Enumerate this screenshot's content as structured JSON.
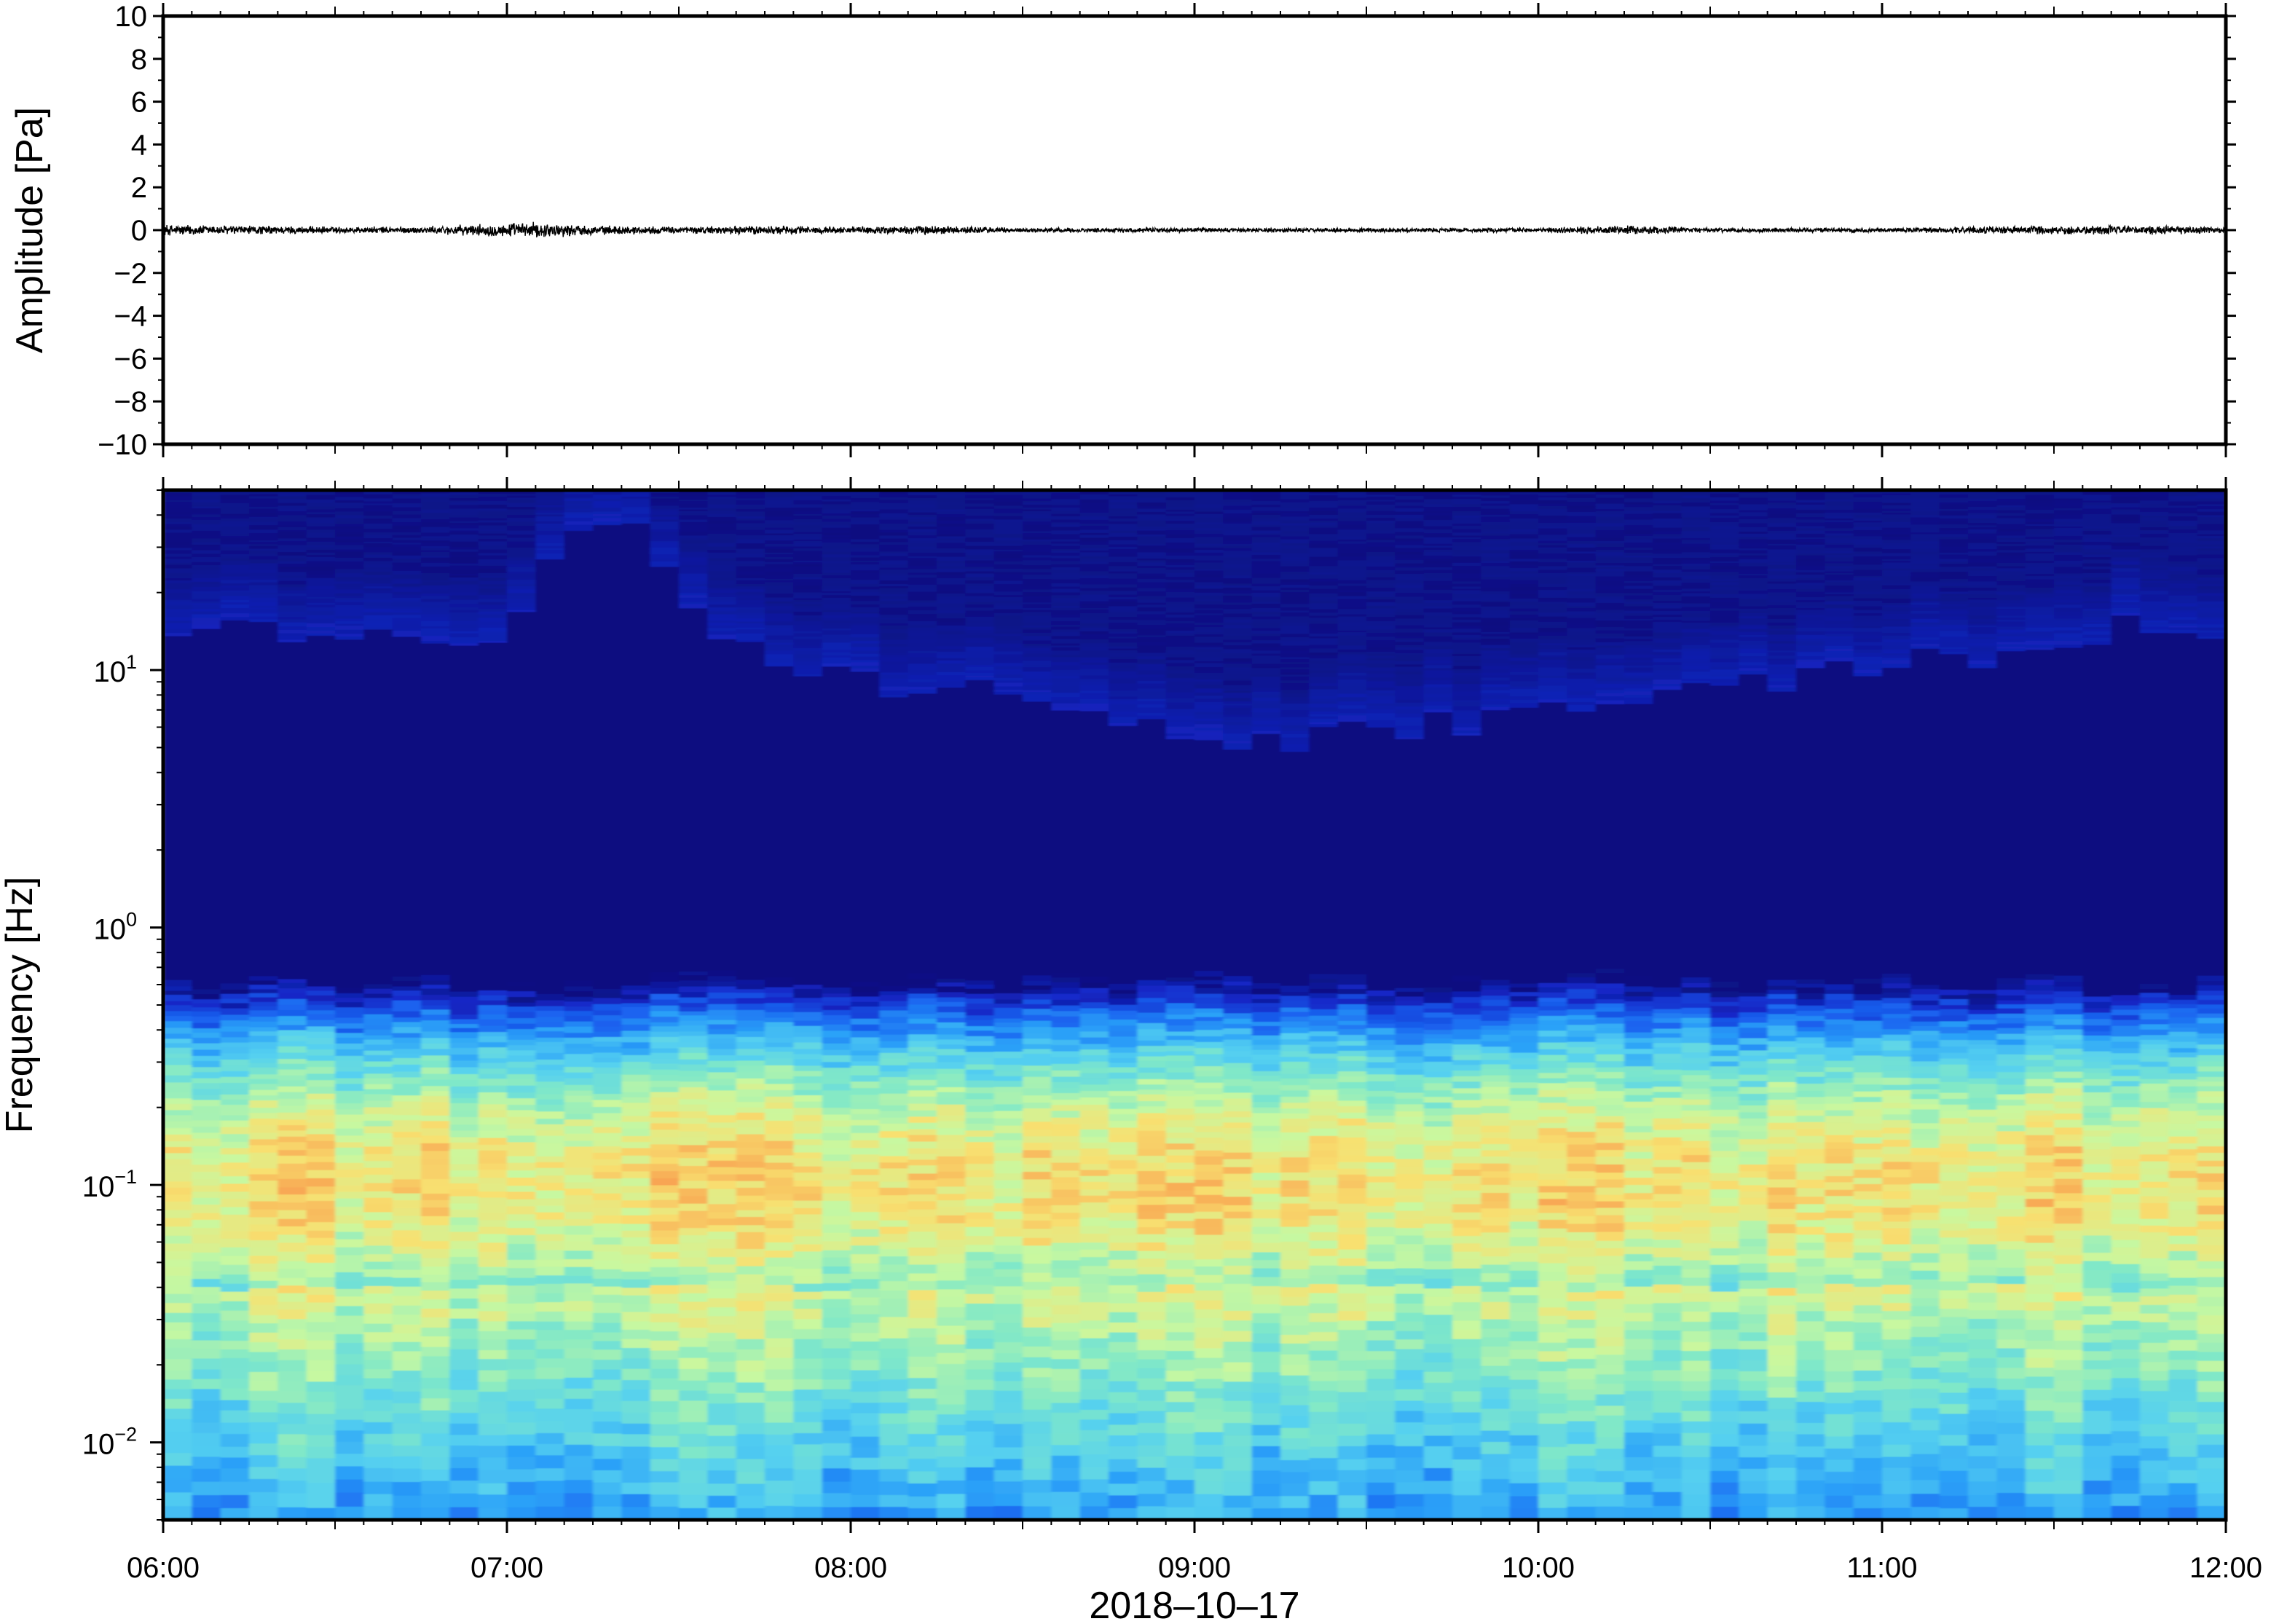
{
  "chart_data": [
    {
      "type": "line",
      "ylabel": "Amplitude [Pa]",
      "ylim": [
        -10,
        10
      ],
      "yticks": [
        "10",
        "8",
        "6",
        "4",
        "2",
        "0",
        "−2",
        "−4",
        "−6",
        "−8",
        "−10"
      ],
      "ytick_values": [
        10,
        8,
        6,
        4,
        2,
        0,
        -2,
        -4,
        -6,
        -8,
        -10
      ],
      "xlim": [
        "06:00",
        "12:00"
      ],
      "series": [
        {
          "color": "#000000",
          "x": [
            "06:00",
            "06:15",
            "06:30",
            "06:45",
            "07:00",
            "07:05",
            "07:15",
            "07:30",
            "07:45",
            "08:00",
            "08:15",
            "08:30",
            "08:45",
            "09:00",
            "09:15",
            "09:30",
            "09:45",
            "10:00",
            "10:15",
            "10:30",
            "10:45",
            "11:00",
            "11:15",
            "11:30",
            "11:45",
            "12:00"
          ],
          "envelope": [
            0.25,
            0.2,
            0.15,
            0.15,
            0.3,
            0.35,
            0.2,
            0.15,
            0.2,
            0.15,
            0.2,
            0.1,
            0.1,
            0.1,
            0.1,
            0.1,
            0.1,
            0.1,
            0.2,
            0.1,
            0.1,
            0.1,
            0.15,
            0.2,
            0.2,
            0.15
          ]
        }
      ]
    },
    {
      "type": "heatmap",
      "ylabel": "Frequency [Hz]",
      "xlabel": "2018–10–17",
      "y_scale": "log",
      "ylim": [
        0.005,
        50
      ],
      "yticks": [
        {
          "base": "10",
          "exp": "1",
          "value": 10
        },
        {
          "base": "10",
          "exp": "0",
          "value": 1
        },
        {
          "base": "10",
          "exp": "−1",
          "value": 0.1
        },
        {
          "base": "10",
          "exp": "−2",
          "value": 0.01
        }
      ],
      "xlim": [
        "06:00",
        "12:00"
      ],
      "xticks": [
        "06:00",
        "07:00",
        "08:00",
        "09:00",
        "10:00",
        "11:00",
        "12:00"
      ],
      "colormap": [
        "#0a0f80",
        "#1428c8",
        "#1a64f0",
        "#2aa0f8",
        "#55d0f0",
        "#80e8c8",
        "#c8f8a0",
        "#f8e070",
        "#f8a050"
      ],
      "upper_energy_boundary_hz": [
        {
          "time": "06:00",
          "hz": 15
        },
        {
          "time": "07:00",
          "hz": 14
        },
        {
          "time": "07:10",
          "hz": 40
        },
        {
          "time": "07:20",
          "hz": 40
        },
        {
          "time": "07:45",
          "hz": 10
        },
        {
          "time": "08:30",
          "hz": 8
        },
        {
          "time": "09:15",
          "hz": 5
        },
        {
          "time": "10:00",
          "hz": 7
        },
        {
          "time": "11:00",
          "hz": 10
        },
        {
          "time": "11:45",
          "hz": 15
        },
        {
          "time": "12:00",
          "hz": 12
        }
      ],
      "peak_band_hz": [
        0.04,
        0.25
      ]
    }
  ]
}
